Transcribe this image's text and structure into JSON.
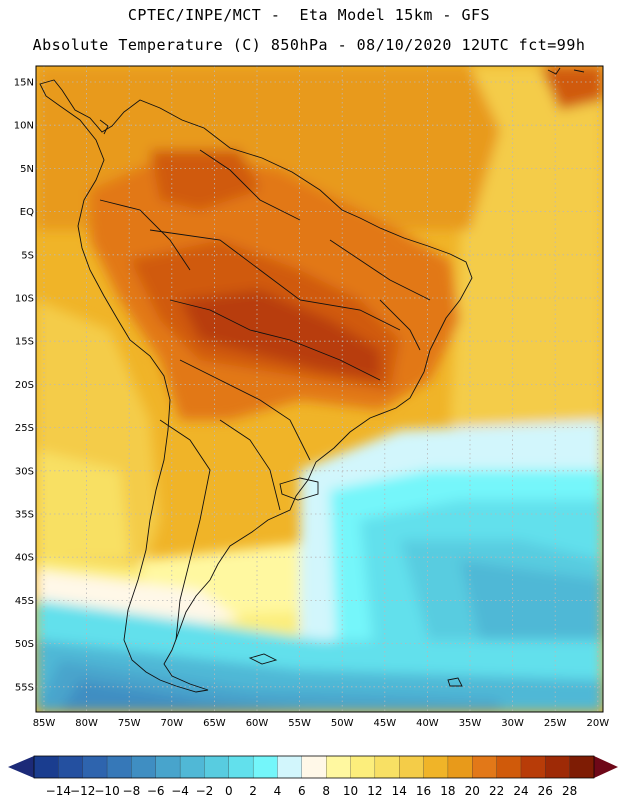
{
  "header": {
    "line1": "CPTEC/INPE/MCT -  Eta Model 15km - GFS",
    "line2": "Absolute Temperature (C) 850hPa - 08/10/2020 12UTC fct=99h"
  },
  "axes": {
    "lat_labels": [
      "15N",
      "10N",
      "5N",
      "EQ",
      "5S",
      "10S",
      "15S",
      "20S",
      "25S",
      "30S",
      "35S",
      "40S",
      "45S",
      "50S",
      "55S"
    ],
    "lon_labels": [
      "85W",
      "80W",
      "75W",
      "70W",
      "65W",
      "60W",
      "55W",
      "50W",
      "45W",
      "40W",
      "35W",
      "30W",
      "25W",
      "20W"
    ]
  },
  "colorbar": {
    "labels": [
      "-14",
      "-12",
      "-10",
      "-8",
      "-6",
      "-4",
      "-2",
      "0",
      "2",
      "4",
      "6",
      "8",
      "10",
      "12",
      "14",
      "16",
      "18",
      "20",
      "22",
      "24",
      "26",
      "28"
    ],
    "colors": [
      "#1a3d8f",
      "#2450a0",
      "#2e64ae",
      "#3678b8",
      "#3f8ec2",
      "#48a4cc",
      "#50b8d6",
      "#58cce0",
      "#62e0ec",
      "#74f6fa",
      "#d2f6fc",
      "#fff8e8",
      "#fff8a0",
      "#fcee7c",
      "#f8e064",
      "#f4cc48",
      "#f0b428",
      "#e89a1a",
      "#e27818",
      "#d05a0a",
      "#b83c08",
      "#9e2a06",
      "#7e1c04"
    ],
    "low_arrow_color": "#1c2a78",
    "high_arrow_color": "#6e0818"
  }
}
